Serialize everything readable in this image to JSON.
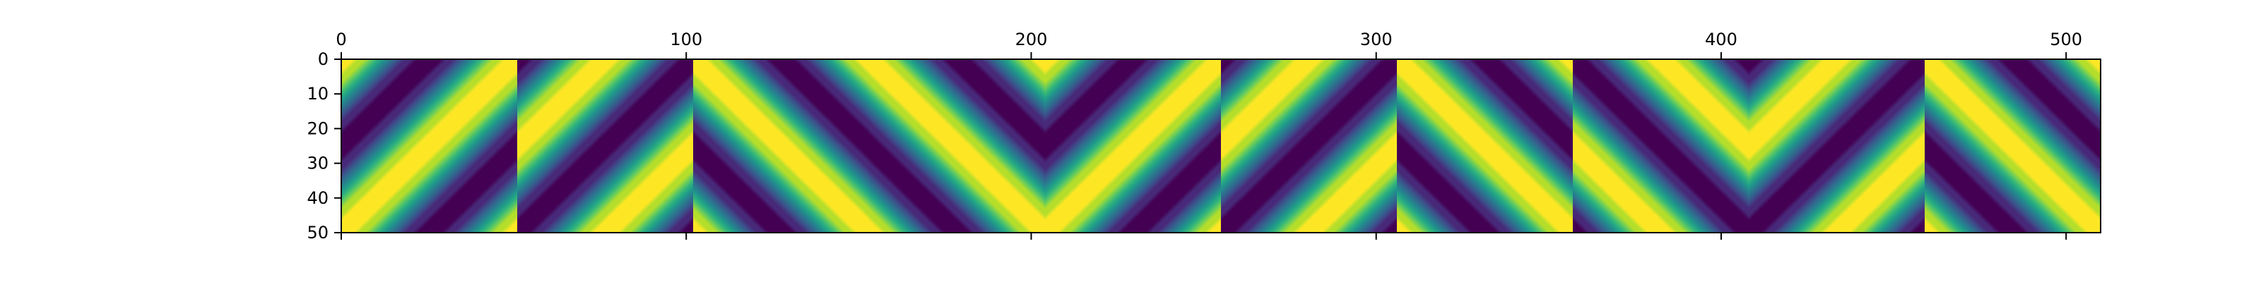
{
  "chart_data": {
    "type": "heatmap",
    "title": "",
    "xlabel": "",
    "ylabel": "",
    "colormap": "viridis",
    "xlim": [
      0,
      510
    ],
    "ylim": [
      50,
      0
    ],
    "xticks": [
      0,
      100,
      200,
      300,
      400,
      500
    ],
    "yticks": [
      0,
      10,
      20,
      30,
      40,
      50
    ],
    "x_axis_position": "top",
    "grid": false,
    "tiles": [
      {
        "x_start": 0,
        "x_end": 51,
        "diagonal": "anti",
        "phase": 0
      },
      {
        "x_start": 51,
        "x_end": 102,
        "diagonal": "anti",
        "phase": 3.14159
      },
      {
        "x_start": 102,
        "x_end": 153,
        "diagonal": "main",
        "phase": 0
      },
      {
        "x_start": 153,
        "x_end": 204,
        "diagonal": "main",
        "phase": 0
      },
      {
        "x_start": 204,
        "x_end": 255,
        "diagonal": "anti",
        "phase": 0
      },
      {
        "x_start": 255,
        "x_end": 306,
        "diagonal": "anti",
        "phase": 3.14159
      },
      {
        "x_start": 306,
        "x_end": 357,
        "diagonal": "main",
        "phase": 0
      },
      {
        "x_start": 357,
        "x_end": 408,
        "diagonal": "main",
        "phase": 3.14159
      },
      {
        "x_start": 408,
        "x_end": 459,
        "diagonal": "anti",
        "phase": 3.14159
      },
      {
        "x_start": 459,
        "x_end": 510,
        "diagonal": "main",
        "phase": 0
      }
    ]
  }
}
